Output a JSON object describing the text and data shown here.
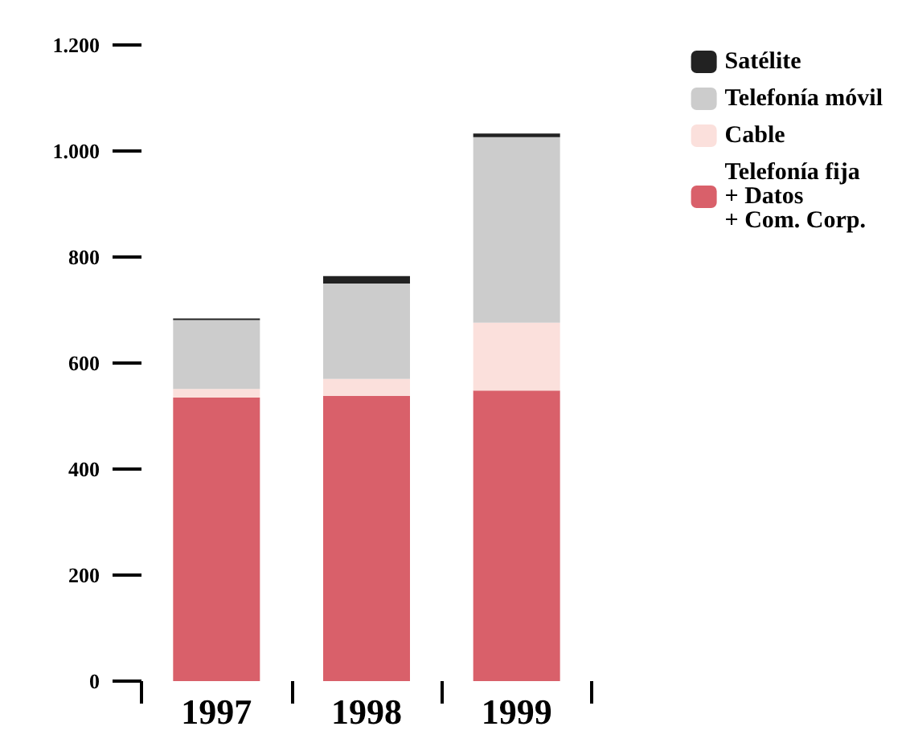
{
  "chart_data": {
    "type": "bar",
    "stacked": true,
    "categories": [
      "1997",
      "1998",
      "1999"
    ],
    "series": [
      {
        "name": "Telefonía fija\n+ Datos\n+ Com. Corp.",
        "color": "#d9606a",
        "values": [
          535,
          538,
          548
        ]
      },
      {
        "name": "Cable",
        "color": "#fbe0dc",
        "values": [
          16,
          32,
          128
        ]
      },
      {
        "name": "Telefonía móvil",
        "color": "#cccccc",
        "values": [
          130,
          180,
          350
        ]
      },
      {
        "name": "Satélite",
        "color": "#222222",
        "values": [
          3,
          14,
          7
        ]
      }
    ],
    "ylim": [
      0,
      1200
    ],
    "yticks": [
      0,
      200,
      400,
      600,
      800,
      {
        "value": 1000,
        "label": "1.000"
      },
      {
        "value": 1200,
        "label": "1.200"
      }
    ],
    "grid": false,
    "legend": "top right"
  }
}
